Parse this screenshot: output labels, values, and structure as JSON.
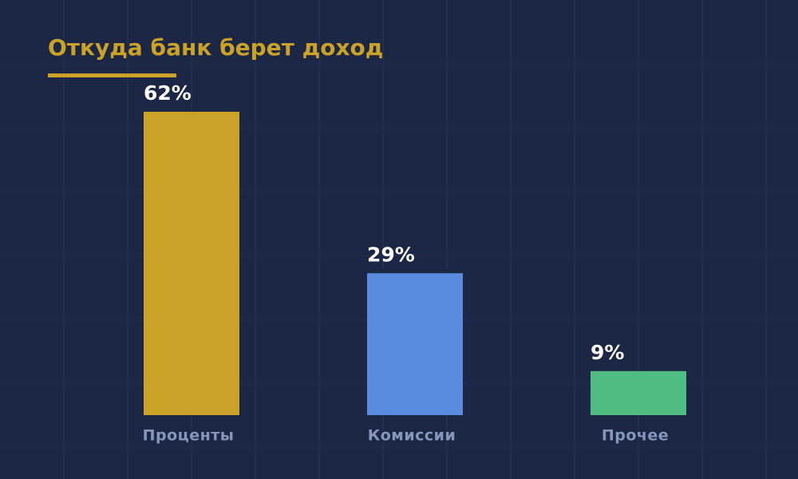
{
  "chart_data": {
    "type": "bar",
    "title": "Откуда банк берет доход",
    "categories": [
      "Проценты",
      "Комиссии",
      "Прочее"
    ],
    "values": [
      62,
      29,
      9
    ],
    "value_labels": [
      "62%",
      "29%",
      "9%"
    ],
    "colors": [
      "#c9a227",
      "#5b8bdc",
      "#4fbd82"
    ]
  }
}
